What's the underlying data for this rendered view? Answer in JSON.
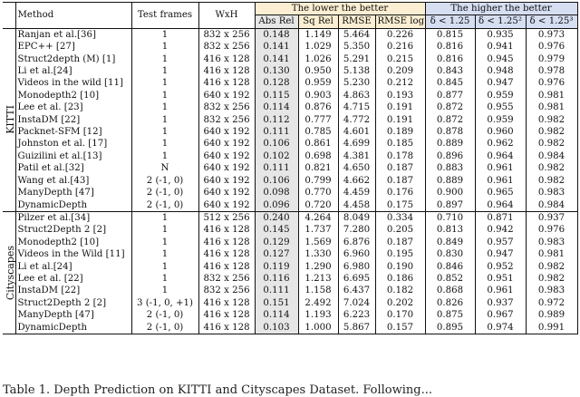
{
  "headers": {
    "method": "Method",
    "test_frames": "Test frames",
    "wxh": "WxH",
    "lower_group": "The lower the better",
    "higher_group": "The higher the better",
    "metrics": [
      "Abs Rel",
      "Sq Rel",
      "RMSE",
      "RMSE log",
      "δ < 1.25",
      "δ < 1.25²",
      "δ < 1.25³"
    ]
  },
  "sections": [
    {
      "dataset": "KITTI",
      "rows": [
        {
          "method": "Ranjan et al.[36]",
          "frames": "1",
          "wxh": "832 x 256",
          "vals": [
            "0.148",
            "1.149",
            "5.464",
            "0.226",
            "0.815",
            "0.935",
            "0.973"
          ],
          "bold": []
        },
        {
          "method": "EPC++ [27]",
          "frames": "1",
          "wxh": "832 x 256",
          "vals": [
            "0.141",
            "1.029",
            "5.350",
            "0.216",
            "0.816",
            "0.941",
            "0.976"
          ],
          "bold": []
        },
        {
          "method": "Struct2depth (M) [1]",
          "frames": "1",
          "wxh": "416 x 128",
          "vals": [
            "0.141",
            "1.026",
            "5.291",
            "0.215",
            "0.816",
            "0.945",
            "0.979"
          ],
          "bold": []
        },
        {
          "method": "Li et al.[24]",
          "frames": "1",
          "wxh": "416 x 128",
          "vals": [
            "0.130",
            "0.950",
            "5.138",
            "0.209",
            "0.843",
            "0.948",
            "0.978"
          ],
          "bold": []
        },
        {
          "method": "Videos in the wild [11]",
          "frames": "1",
          "wxh": "416 x 128",
          "vals": [
            "0.128",
            "0.959",
            "5.230",
            "0.212",
            "0.845",
            "0.947",
            "0.976"
          ],
          "bold": []
        },
        {
          "method": "Monodepth2 [10]",
          "frames": "1",
          "wxh": "640 x 192",
          "vals": [
            "0.115",
            "0.903",
            "4.863",
            "0.193",
            "0.877",
            "0.959",
            "0.981"
          ],
          "bold": []
        },
        {
          "method": "Lee et al. [23]",
          "frames": "1",
          "wxh": "832 x 256",
          "vals": [
            "0.114",
            "0.876",
            "4.715",
            "0.191",
            "0.872",
            "0.955",
            "0.981"
          ],
          "bold": []
        },
        {
          "method": "InstaDM [22]",
          "frames": "1",
          "wxh": "832 x 256",
          "vals": [
            "0.112",
            "0.777",
            "4.772",
            "0.191",
            "0.872",
            "0.959",
            "0.982"
          ],
          "bold": []
        },
        {
          "method": "Packnet-SFM [12]",
          "frames": "1",
          "wxh": "640 x 192",
          "vals": [
            "0.111",
            "0.785",
            "4.601",
            "0.189",
            "0.878",
            "0.960",
            "0.982"
          ],
          "bold": []
        },
        {
          "method": "Johnston et al. [17]",
          "frames": "1",
          "wxh": "640 x 192",
          "vals": [
            "0.106",
            "0.861",
            "4.699",
            "0.185",
            "0.889",
            "0.962",
            "0.982"
          ],
          "bold": []
        },
        {
          "method": "Guizilini et al.[13]",
          "frames": "1",
          "wxh": "640 x 192",
          "vals": [
            "0.102",
            "0.698",
            "4.381",
            "0.178",
            "0.896",
            "0.964",
            "0.984"
          ],
          "bold": []
        },
        {
          "method": "Patil et al.[32]",
          "frames": "N",
          "wxh": "640 x 192",
          "vals": [
            "0.111",
            "0.821",
            "4.650",
            "0.187",
            "0.883",
            "0.961",
            "0.982"
          ],
          "bold": []
        },
        {
          "method": "Wang et al.[43]",
          "frames": "2 (-1, 0)",
          "wxh": "640 x 192",
          "vals": [
            "0.106",
            "0.799",
            "4.662",
            "0.187",
            "0.889",
            "0.961",
            "0.982"
          ],
          "bold": []
        },
        {
          "method": "ManyDepth [47]",
          "frames": "2 (-1, 0)",
          "wxh": "640 x 192",
          "vals": [
            "0.098",
            "0.770",
            "4.459",
            "0.176",
            "0.900",
            "0.965",
            "0.983"
          ],
          "bold": [
            4,
            5
          ]
        },
        {
          "method": "DynamicDepth",
          "frames": "2 (-1, 0)",
          "wxh": "640 x 192",
          "vals": [
            "0.096",
            "0.720",
            "4.458",
            "0.175",
            "0.897",
            "0.964",
            "0.984"
          ],
          "bold": [
            0,
            1,
            2,
            3,
            6
          ],
          "method_bold": true
        }
      ]
    },
    {
      "dataset": "Cityscapes",
      "rows": [
        {
          "method": "Pilzer et al.[34]",
          "frames": "1",
          "wxh": "512 x 256",
          "vals": [
            "0.240",
            "4.264",
            "8.049",
            "0.334",
            "0.710",
            "0.871",
            "0.937"
          ],
          "bold": []
        },
        {
          "method": "Struct2Depth 2 [2]",
          "frames": "1",
          "wxh": "416 x 128",
          "vals": [
            "0.145",
            "1.737",
            "7.280",
            "0.205",
            "0.813",
            "0.942",
            "0.976"
          ],
          "bold": []
        },
        {
          "method": "Monodepth2 [10]",
          "frames": "1",
          "wxh": "416 x 128",
          "vals": [
            "0.129",
            "1.569",
            "6.876",
            "0.187",
            "0.849",
            "0.957",
            "0.983"
          ],
          "bold": []
        },
        {
          "method": "Videos in the Wild [11]",
          "frames": "1",
          "wxh": "416 x 128",
          "vals": [
            "0.127",
            "1.330",
            "6.960",
            "0.195",
            "0.830",
            "0.947",
            "0.981"
          ],
          "bold": []
        },
        {
          "method": "Li et al.[24]",
          "frames": "1",
          "wxh": "416 x 128",
          "vals": [
            "0.119",
            "1.290",
            "6.980",
            "0.190",
            "0.846",
            "0.952",
            "0.982"
          ],
          "bold": []
        },
        {
          "method": "Lee et al. [22]",
          "frames": "1",
          "wxh": "832 x 256",
          "vals": [
            "0.116",
            "1.213",
            "6.695",
            "0.186",
            "0.852",
            "0.951",
            "0.982"
          ],
          "bold": []
        },
        {
          "method": "InstaDM [22]",
          "frames": "1",
          "wxh": "832 x 256",
          "vals": [
            "0.111",
            "1.158",
            "6.437",
            "0.182",
            "0.868",
            "0.961",
            "0.983"
          ],
          "bold": []
        },
        {
          "method": "Struct2Depth 2 [2]",
          "frames": "3 (-1, 0, +1)",
          "wxh": "416 x 128",
          "vals": [
            "0.151",
            "2.492",
            "7.024",
            "0.202",
            "0.826",
            "0.937",
            "0.972"
          ],
          "bold": []
        },
        {
          "method": "ManyDepth [47]",
          "frames": "2 (-1, 0)",
          "wxh": "416 x 128",
          "vals": [
            "0.114",
            "1.193",
            "6.223",
            "0.170",
            "0.875",
            "0.967",
            "0.989"
          ],
          "bold": []
        },
        {
          "method": "DynamicDepth",
          "frames": "2 (-1, 0)",
          "wxh": "416 x 128",
          "vals": [
            "0.103",
            "1.000",
            "5.867",
            "0.157",
            "0.895",
            "0.974",
            "0.991"
          ],
          "bold": [
            0,
            1,
            2,
            3,
            4,
            5,
            6
          ],
          "method_bold": true
        }
      ]
    }
  ],
  "caption": "Table 1. Depth Prediction on KITTI and Cityscapes Dataset. Following..."
}
